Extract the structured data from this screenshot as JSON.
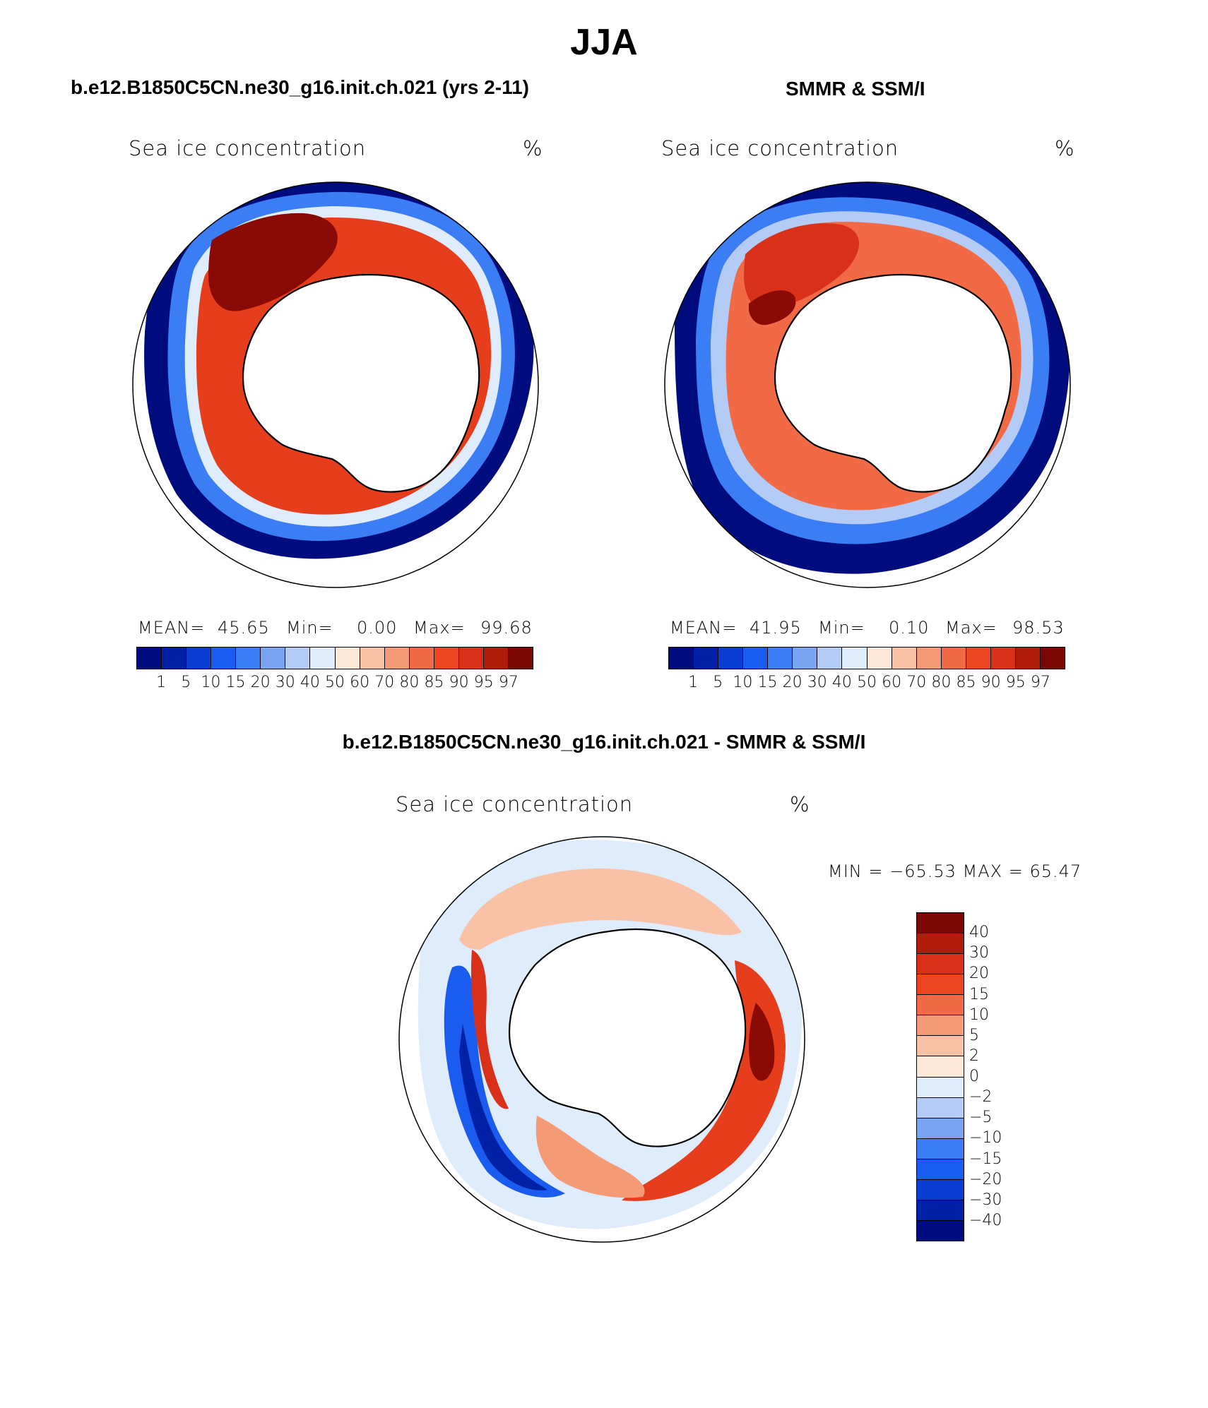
{
  "figure": {
    "title": "JJA",
    "panel_model_title": "b.e12.B1850C5CN.ne30_g16.init.ch.021 (yrs 2-11)",
    "panel_obs_title": "SMMR & SSM/I",
    "panel_diff_title": "b.e12.B1850C5CN.ne30_g16.init.ch.021 - SMMR & SSM/I"
  },
  "panels": {
    "model": {
      "variable": "Sea ice concentration",
      "units": "%",
      "mean_label": "MEAN=",
      "mean": "45.65",
      "min_label": "Min=",
      "min": "0.00",
      "max_label": "Max=",
      "max": "99.68"
    },
    "obs": {
      "variable": "Sea ice concentration",
      "units": "%",
      "mean_label": "MEAN=",
      "mean": "41.95",
      "min_label": "Min=",
      "min": "0.10",
      "max_label": "Max=",
      "max": "98.53"
    },
    "diff": {
      "variable": "Sea ice concentration",
      "units": "%",
      "minmax_text": "MIN = −65.53 MAX =   65.47"
    }
  },
  "colorbar_abs": {
    "labels": [
      "1",
      "5",
      "10",
      "15",
      "20",
      "30",
      "40",
      "50",
      "60",
      "70",
      "80",
      "85",
      "90",
      "95",
      "97"
    ],
    "colors": [
      "#000c7d",
      "#0021a6",
      "#0a3dd1",
      "#1a5bf0",
      "#3b7df5",
      "#7aa3f2",
      "#b3cbf5",
      "#dfecfb",
      "#fde8d8",
      "#f9c2a7",
      "#f49a76",
      "#f06a45",
      "#ea4520",
      "#d9301a",
      "#b01c0a",
      "#7a0805"
    ]
  },
  "colorbar_diff": {
    "labels": [
      "40",
      "30",
      "20",
      "15",
      "10",
      "5",
      "2",
      "0",
      "−2",
      "−5",
      "−10",
      "−15",
      "−20",
      "−30",
      "−40"
    ],
    "colors": [
      "#7a0805",
      "#b01c0a",
      "#d9301a",
      "#ea4520",
      "#f06a45",
      "#f49a76",
      "#f9c2a7",
      "#fde8d8",
      "#dfecfb",
      "#b3cbf5",
      "#7aa3f2",
      "#3b7df5",
      "#1a5bf0",
      "#0a3dd1",
      "#0021a6",
      "#000c7d"
    ]
  }
}
